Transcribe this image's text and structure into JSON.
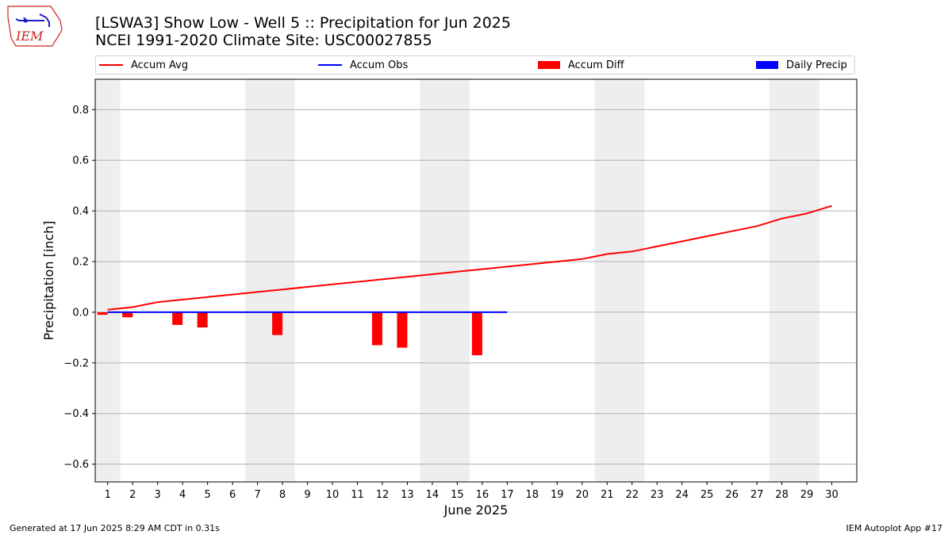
{
  "header": {
    "title_line1": "[LSWA3] Show Low - Well 5 :: Precipitation for Jun 2025",
    "title_line2": "NCEI 1991-2020 Climate Site: USC00027855",
    "logo_text": "IEM"
  },
  "legend": {
    "items": [
      {
        "label": "Accum Avg",
        "kind": "line",
        "color": "#ff0000"
      },
      {
        "label": "Accum Obs",
        "kind": "line",
        "color": "#0000ff"
      },
      {
        "label": "Accum Diff",
        "kind": "box",
        "color": "#ff0000"
      },
      {
        "label": "Daily Precip",
        "kind": "box",
        "color": "#0000ff"
      }
    ]
  },
  "footer": {
    "generated": "Generated at 17 Jun 2025 8:29 AM CDT in 0.31s",
    "app": "IEM Autoplot App #17"
  },
  "chart_data": {
    "type": "line",
    "title": "[LSWA3] Show Low - Well 5 :: Precipitation for Jun 2025",
    "subtitle": "NCEI 1991-2020 Climate Site: USC00027855",
    "xlabel": "June 2025",
    "ylabel": "Precipitation [inch]",
    "xlim": [
      0.5,
      31
    ],
    "ylim": [
      -0.67,
      0.92
    ],
    "x": [
      1,
      2,
      3,
      4,
      5,
      6,
      7,
      8,
      9,
      10,
      11,
      12,
      13,
      14,
      15,
      16,
      17,
      18,
      19,
      20,
      21,
      22,
      23,
      24,
      25,
      26,
      27,
      28,
      29,
      30
    ],
    "x_tick_labels": [
      "1",
      "2",
      "3",
      "4",
      "5",
      "6",
      "7",
      "8",
      "9",
      "10",
      "11",
      "12",
      "13",
      "14",
      "15",
      "16",
      "17",
      "18",
      "19",
      "20",
      "21",
      "22",
      "23",
      "24",
      "25",
      "26",
      "27",
      "28",
      "29",
      "30"
    ],
    "y_ticks": [
      -0.6,
      -0.4,
      -0.2,
      0.0,
      0.2,
      0.4,
      0.6,
      0.8
    ],
    "y_tick_labels": [
      "−0.6",
      "−0.4",
      "−0.2",
      "0.0",
      "0.2",
      "0.4",
      "0.6",
      "0.8"
    ],
    "grid": "horizontal",
    "weekend_shading": [
      [
        0.5,
        1.5
      ],
      [
        6.5,
        8.5
      ],
      [
        13.5,
        15.5
      ],
      [
        20.5,
        22.5
      ],
      [
        27.5,
        29.5
      ]
    ],
    "series": [
      {
        "name": "Accum Avg",
        "type": "line",
        "color": "#ff0000",
        "x": [
          1,
          2,
          3,
          4,
          5,
          6,
          7,
          8,
          9,
          10,
          11,
          12,
          13,
          14,
          15,
          16,
          17,
          18,
          19,
          20,
          21,
          22,
          23,
          24,
          25,
          26,
          27,
          28,
          29,
          30
        ],
        "values": [
          0.01,
          0.02,
          0.04,
          0.05,
          0.06,
          0.07,
          0.08,
          0.09,
          0.1,
          0.11,
          0.12,
          0.13,
          0.14,
          0.15,
          0.16,
          0.17,
          0.18,
          0.19,
          0.2,
          0.21,
          0.23,
          0.24,
          0.26,
          0.28,
          0.3,
          0.32,
          0.34,
          0.37,
          0.39,
          0.42
        ]
      },
      {
        "name": "Accum Obs",
        "type": "line",
        "color": "#0000ff",
        "x": [
          1,
          2,
          3,
          4,
          5,
          6,
          7,
          8,
          9,
          10,
          11,
          12,
          13,
          14,
          15,
          16,
          17
        ],
        "values": [
          0,
          0,
          0,
          0,
          0,
          0,
          0,
          0,
          0,
          0,
          0,
          0,
          0,
          0,
          0,
          0,
          0
        ]
      },
      {
        "name": "Accum Diff",
        "type": "bar",
        "color": "#ff0000",
        "x": [
          1,
          2,
          4,
          5,
          8,
          12,
          13,
          16
        ],
        "values": [
          -0.01,
          -0.02,
          -0.05,
          -0.06,
          -0.09,
          -0.13,
          -0.14,
          -0.17
        ]
      },
      {
        "name": "Daily Precip",
        "type": "bar",
        "color": "#0000ff",
        "x": [],
        "values": []
      }
    ]
  }
}
